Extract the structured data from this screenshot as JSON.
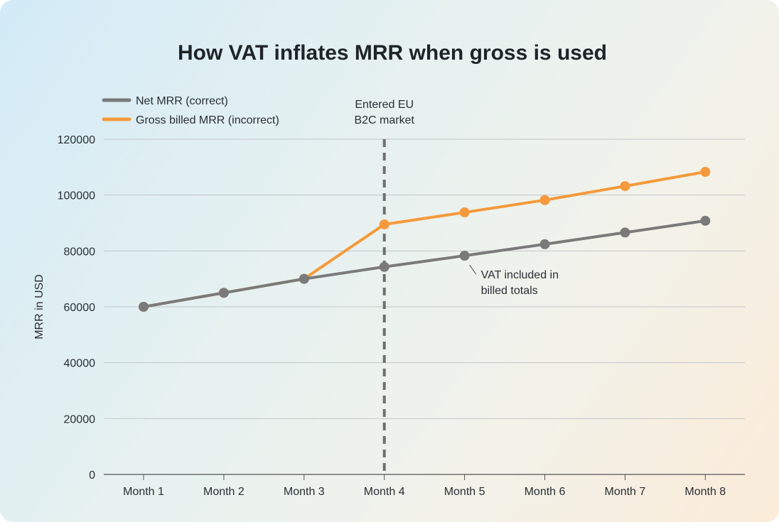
{
  "chart_data": {
    "type": "line",
    "title": "How VAT inflates MRR when gross is used",
    "xlabel": "",
    "ylabel": "MRR in USD",
    "categories": [
      "Month 1",
      "Month 2",
      "Month 3",
      "Month 4",
      "Month 5",
      "Month 6",
      "Month 7",
      "Month 8"
    ],
    "ylim": [
      0,
      120000
    ],
    "yticks": [
      0,
      20000,
      40000,
      60000,
      80000,
      100000,
      120000
    ],
    "grid": "horizontal",
    "legend_position": "top-left",
    "series": [
      {
        "name": "Net MRR (correct)",
        "color": "#7a7a7a",
        "values": [
          60000,
          65000,
          70000,
          74300,
          78300,
          82400,
          86600,
          90800
        ]
      },
      {
        "name": "Gross billed MRR (incorrect)",
        "color": "#f59a3c",
        "values": [
          60000,
          65000,
          70000,
          89500,
          93800,
          98200,
          103200,
          108300
        ]
      }
    ],
    "annotations": [
      {
        "type": "vline",
        "x": "Month 4",
        "text": [
          "Entered EU",
          "B2C market"
        ],
        "color": "#6f6f6f"
      },
      {
        "type": "callout",
        "x": "Month 5",
        "series": "Net MRR (correct)",
        "text": [
          "VAT included in",
          "billed totals"
        ]
      }
    ]
  }
}
